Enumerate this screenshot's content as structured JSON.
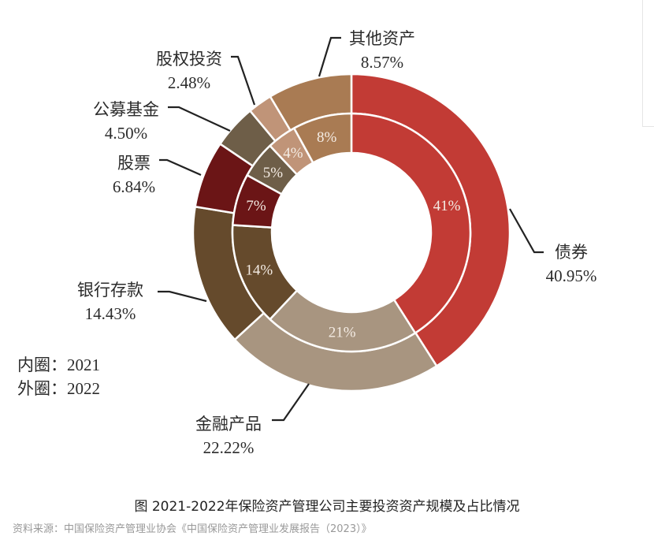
{
  "chart_data": {
    "type": "pie",
    "subtype": "double-donut",
    "title": "图  2021-2022年保险资产管理公司主要投资资产规模及占比情况",
    "source": "资料来源：中国保险资产管理业协会《中国保险资产管理业发展报告（2023）》",
    "legend_note": [
      "内圈：2021",
      "外圈：2022"
    ],
    "categories": [
      "债券",
      "金融产品",
      "银行存款",
      "股票",
      "公募基金",
      "股权投资",
      "其他资产"
    ],
    "colors": [
      "#C23B35",
      "#A89580",
      "#654A2C",
      "#6B1516",
      "#6E5E48",
      "#C09478",
      "#A97B53"
    ],
    "series": [
      {
        "name": "2021",
        "ring": "inner",
        "values": [
          41,
          21,
          14,
          7,
          5,
          4,
          8
        ],
        "labels": [
          "41%",
          "21%",
          "14%",
          "7%",
          "5%",
          "4%",
          "8%"
        ]
      },
      {
        "name": "2022",
        "ring": "outer",
        "values": [
          40.95,
          22.22,
          14.43,
          6.84,
          4.5,
          2.48,
          8.57
        ],
        "labels": [
          "40.95%",
          "22.22%",
          "14.43%",
          "6.84%",
          "4.50%",
          "2.48%",
          "8.57%"
        ]
      }
    ]
  }
}
